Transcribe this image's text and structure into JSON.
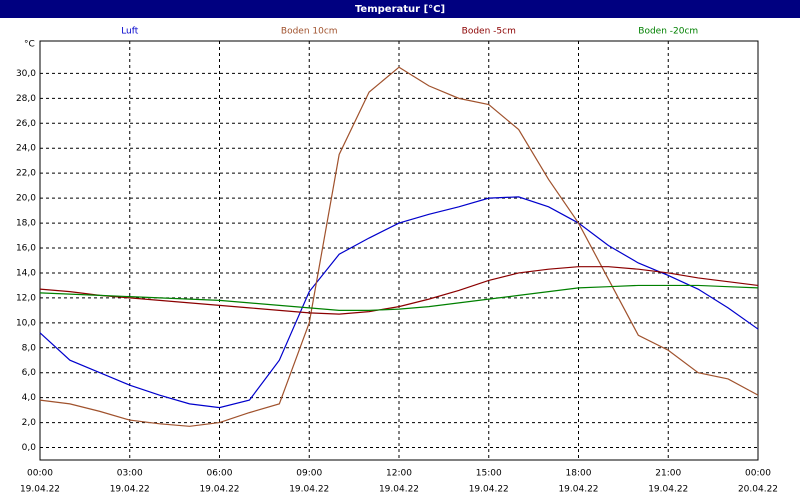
{
  "chart_data": {
    "type": "line",
    "title": "Temperatur [°C]",
    "y_label": "°C",
    "x": [
      0,
      1,
      2,
      3,
      4,
      5,
      6,
      7,
      8,
      9,
      10,
      11,
      12,
      13,
      14,
      15,
      16,
      17,
      18,
      19,
      20,
      21,
      22,
      23,
      24
    ],
    "series": [
      {
        "name": "Luft",
        "color": "#0000cc",
        "values": [
          9.2,
          7.0,
          6.0,
          5.0,
          4.2,
          3.5,
          3.2,
          3.8,
          7.0,
          12.5,
          15.5,
          16.8,
          18.0,
          18.7,
          19.3,
          20.0,
          20.1,
          19.3,
          18.0,
          16.2,
          14.8,
          13.8,
          12.7,
          11.2,
          9.5
        ]
      },
      {
        "name": "Boden 10cm",
        "color": "#a0522d",
        "values": [
          3.8,
          3.5,
          2.9,
          2.2,
          1.9,
          1.7,
          2.0,
          2.8,
          3.5,
          10.0,
          23.5,
          28.5,
          30.5,
          29.0,
          28.0,
          27.5,
          25.5,
          21.5,
          18.0,
          13.5,
          9.0,
          7.8,
          6.0,
          5.5,
          4.2
        ]
      },
      {
        "name": "Boden -5cm",
        "color": "#8b0000",
        "values": [
          12.7,
          12.5,
          12.2,
          12.0,
          11.8,
          11.6,
          11.4,
          11.2,
          11.0,
          10.8,
          10.7,
          10.9,
          11.3,
          11.9,
          12.6,
          13.4,
          14.0,
          14.3,
          14.5,
          14.5,
          14.3,
          14.0,
          13.6,
          13.3,
          13.0
        ]
      },
      {
        "name": "Boden -20cm",
        "color": "#008000",
        "values": [
          12.4,
          12.3,
          12.2,
          12.1,
          12.0,
          11.9,
          11.8,
          11.6,
          11.4,
          11.2,
          11.0,
          11.0,
          11.1,
          11.3,
          11.6,
          11.9,
          12.2,
          12.5,
          12.8,
          12.9,
          13.0,
          13.0,
          13.0,
          12.9,
          12.8
        ]
      }
    ],
    "xlim": [
      0,
      24
    ],
    "xticks": [
      {
        "value": 0,
        "label": "00:00"
      },
      {
        "value": 3,
        "label": "03:00"
      },
      {
        "value": 6,
        "label": "06:00"
      },
      {
        "value": 9,
        "label": "09:00"
      },
      {
        "value": 12,
        "label": "12:00"
      },
      {
        "value": 15,
        "label": "15:00"
      },
      {
        "value": 18,
        "label": "18:00"
      },
      {
        "value": 21,
        "label": "21:00"
      },
      {
        "value": 24,
        "label": "00:00"
      }
    ],
    "x_tick_dates": [
      "19.04.22",
      "19.04.22",
      "19.04.22",
      "19.04.22",
      "19.04.22",
      "19.04.22",
      "19.04.22",
      "19.04.22",
      "20.04.22"
    ],
    "ylim": [
      -1,
      32.6
    ],
    "yticks": [
      {
        "value": 0,
        "label": "0,0"
      },
      {
        "value": 2,
        "label": "2,0"
      },
      {
        "value": 4,
        "label": "4,0"
      },
      {
        "value": 6,
        "label": "6,0"
      },
      {
        "value": 8,
        "label": "8,0"
      },
      {
        "value": 10,
        "label": "10,0"
      },
      {
        "value": 12,
        "label": "12,0"
      },
      {
        "value": 14,
        "label": "14,0"
      },
      {
        "value": 16,
        "label": "16,0"
      },
      {
        "value": 18,
        "label": "18,0"
      },
      {
        "value": 20,
        "label": "20,0"
      },
      {
        "value": 22,
        "label": "22,0"
      },
      {
        "value": 24,
        "label": "24,0"
      },
      {
        "value": 26,
        "label": "26,0"
      },
      {
        "value": 28,
        "label": "28,0"
      },
      {
        "value": 30,
        "label": "30,0"
      }
    ],
    "grid": true,
    "legend": "top"
  }
}
